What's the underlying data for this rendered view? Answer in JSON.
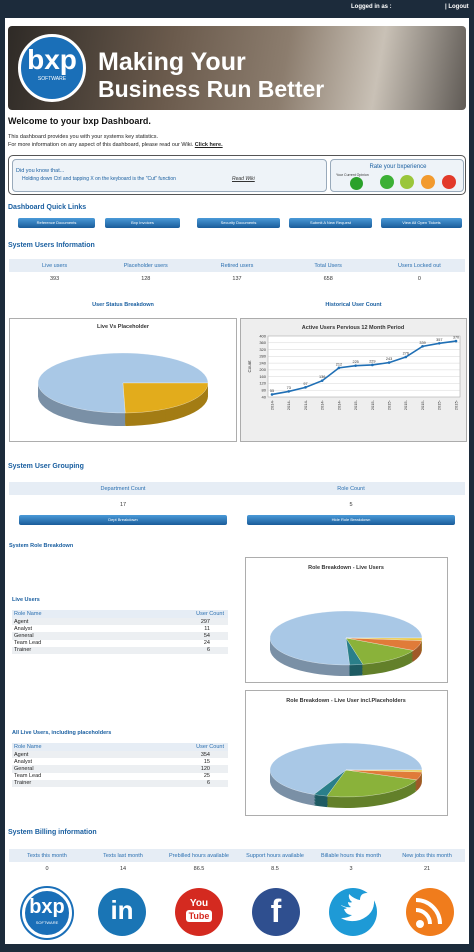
{
  "top_bar": {
    "user": "Logged in as :",
    "logout": "| Logout"
  },
  "banner": {
    "logo": "bxp",
    "logo_sub": "SOFTWARE",
    "line1": "Making Your",
    "line2": "Business Run Better"
  },
  "welcome": {
    "title": "Welcome to your bxp Dashboard.",
    "line1": "This dashboard provides you with your systems key statistics.",
    "line2": "For more information on any aspect of this dashboard, please read our Wiki.",
    "link": "Click here."
  },
  "tip": {
    "heading": "Did you know that...",
    "text": "Holding down Ctrl and tapping X on the keyboard is the \"Cut\" function",
    "link": "Read Wiki",
    "rate_title": "Rate your bxperience",
    "rate_subtitle": "Your Current Opinion"
  },
  "quick_links": {
    "title": "Dashboard Quick Links",
    "buttons": [
      "Reference Documents",
      "Bxp Invoices",
      "Security Documents",
      "Submit A New Request",
      "View All Open Tickets"
    ]
  },
  "users": {
    "title": "System Users Information",
    "headers": [
      "Live users",
      "Placeholder users",
      "Retired users",
      "Total Users",
      "Users Locked out"
    ],
    "values": [
      393,
      128,
      137,
      658,
      0
    ]
  },
  "status_chart": {
    "heading": "User Status Breakdown",
    "chart_data": {
      "type": "pie",
      "title": "Live Vs Placeholder",
      "values": [
        393,
        128
      ],
      "colors": [
        "#a9c8e6",
        "#e2ac1c"
      ]
    }
  },
  "history": {
    "heading": "Historical User Count",
    "chart_data": {
      "type": "line",
      "title": "Active Users Pervious 12 Month Period",
      "y_label": "Count",
      "categories": [
        "2014-",
        "2014-",
        "2014-",
        "2014-",
        "2014-",
        "2015-",
        "2015-",
        "2015-",
        "2015-",
        "2015-",
        "2015-",
        "2015-"
      ],
      "values": [
        55,
        73,
        97,
        136,
        212,
        225,
        229,
        243,
        276,
        339,
        357,
        370
      ],
      "ylim": [
        40,
        400
      ],
      "yticks": [
        40,
        80,
        120,
        160,
        200,
        240,
        280,
        320,
        360,
        400
      ],
      "color": "#1f6fb5",
      "grid": true
    }
  },
  "grouping": {
    "title": "System User Grouping",
    "headers": [
      "Department Count",
      "Role Count"
    ],
    "values": [
      17,
      5
    ],
    "buttons": [
      "Dept Breakdown",
      "Hide Role Breakdown"
    ]
  },
  "roles": {
    "title": "System Role Breakdown",
    "tables": [
      {
        "title": "Live Users",
        "headers": [
          "Role Name",
          "User Count"
        ],
        "rows": [
          [
            "Agent",
            297
          ],
          [
            "Analyst",
            11
          ],
          [
            "General",
            54
          ],
          [
            "Team Lead",
            24
          ],
          [
            "Trainer",
            6
          ]
        ]
      },
      {
        "title": "All Live Users, including placeholders",
        "headers": [
          "Role Name",
          "User Count"
        ],
        "rows": [
          [
            "Agent",
            354
          ],
          [
            "Analyst",
            15
          ],
          [
            "General",
            120
          ],
          [
            "Team Lead",
            25
          ],
          [
            "Trainer",
            6
          ]
        ]
      }
    ],
    "charts": [
      {
        "type": "pie",
        "title": "Role Breakdown - Live Users",
        "values": [
          297,
          11,
          54,
          24,
          6
        ],
        "colors": [
          "#a9c8e6",
          "#2a7f8a",
          "#8ab23a",
          "#e07b39",
          "#e8c84a"
        ]
      },
      {
        "type": "pie",
        "title": "Role Breakdown - Live User incl.Placeholders",
        "values": [
          354,
          15,
          120,
          25,
          6
        ],
        "colors": [
          "#a9c8e6",
          "#2a7f8a",
          "#8ab23a",
          "#e07b39",
          "#e8c84a"
        ]
      }
    ]
  },
  "billing": {
    "title": "System Billing information",
    "headers": [
      "Texts this month",
      "Texts last month",
      "Prebilled hours available",
      "Support hours available",
      "Billable hours this month",
      "New jobs this month"
    ],
    "values": [
      0,
      14,
      86.5,
      8.5,
      3,
      21
    ]
  },
  "footer": {
    "logo": "bxp",
    "logo_sub": "SOFTWARE",
    "linkedin": "in",
    "youtube_top": "You",
    "youtube_bottom": "Tube",
    "facebook": "f"
  }
}
